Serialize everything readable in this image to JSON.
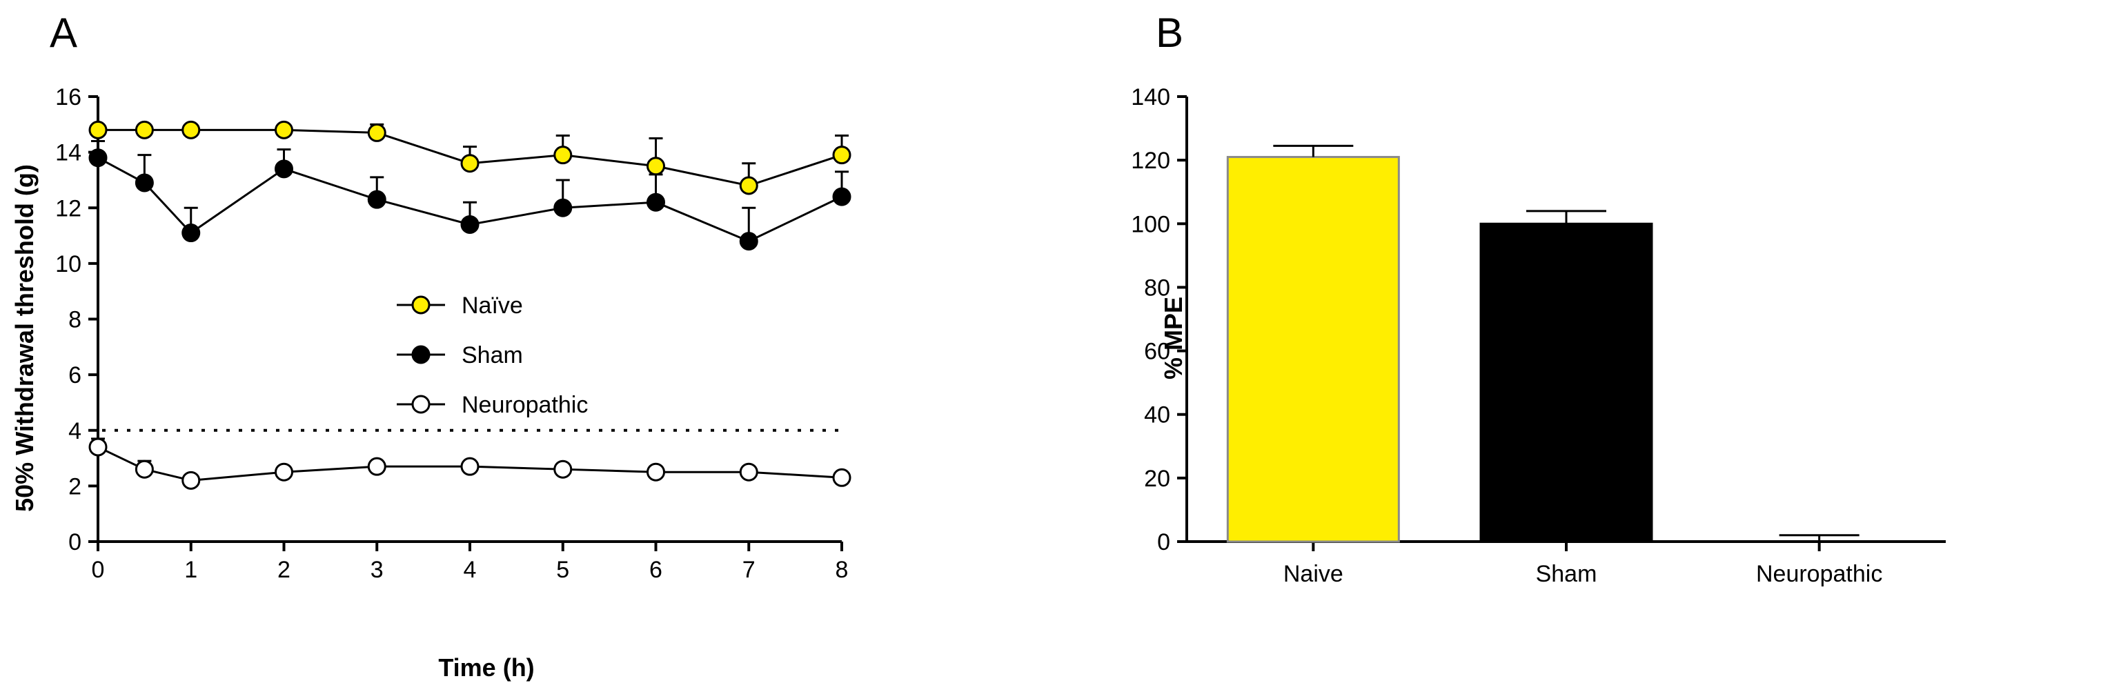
{
  "chart_data": [
    {
      "panel": "A",
      "type": "line",
      "xlabel": "Time (h)",
      "ylabel": "50% Withdrawal threshold (g)",
      "xlim": [
        0,
        8
      ],
      "ylim": [
        0,
        16
      ],
      "xticks": [
        0,
        1,
        2,
        3,
        4,
        5,
        6,
        7,
        8
      ],
      "yticks": [
        0,
        2,
        4,
        6,
        8,
        10,
        12,
        14,
        16
      ],
      "x": [
        0,
        0.5,
        1,
        2,
        3,
        4,
        5,
        6,
        7,
        8
      ],
      "reference_line": 4,
      "legend_position": "center",
      "series": [
        {
          "name": "Naïve",
          "marker": "yellow-circle",
          "color": "#ffee00",
          "values": [
            14.8,
            14.8,
            14.8,
            14.8,
            14.7,
            13.6,
            13.9,
            13.5,
            12.8,
            13.9
          ],
          "error": [
            0,
            0,
            0,
            0,
            0.3,
            0.6,
            0.7,
            1.0,
            0.8,
            0.7
          ]
        },
        {
          "name": "Sham",
          "marker": "black-circle",
          "color": "#000000",
          "values": [
            13.8,
            12.9,
            11.1,
            13.4,
            12.3,
            11.4,
            12.0,
            12.2,
            10.8,
            12.4
          ],
          "error": [
            0.6,
            1.0,
            0.9,
            0.7,
            0.8,
            0.8,
            1.0,
            1.0,
            1.2,
            0.9
          ]
        },
        {
          "name": "Neuropathic",
          "marker": "white-circle",
          "color": "#ffffff",
          "values": [
            3.4,
            2.6,
            2.2,
            2.5,
            2.7,
            2.7,
            2.6,
            2.5,
            2.5,
            2.3
          ],
          "error": [
            0.3,
            0.3,
            0.1,
            0.1,
            0.1,
            0.1,
            0.1,
            0.1,
            0.1,
            0.1
          ]
        }
      ]
    },
    {
      "panel": "B",
      "type": "bar",
      "ylabel": "% MPE",
      "ylim": [
        0,
        140
      ],
      "yticks": [
        0,
        20,
        40,
        60,
        80,
        100,
        120,
        140
      ],
      "categories": [
        "Naive",
        "Sham",
        "Neuropathic"
      ],
      "values": [
        121,
        100,
        0
      ],
      "error": [
        3.5,
        4,
        2
      ],
      "colors": [
        "#ffee00",
        "#000000",
        "#ffffff"
      ]
    }
  ]
}
